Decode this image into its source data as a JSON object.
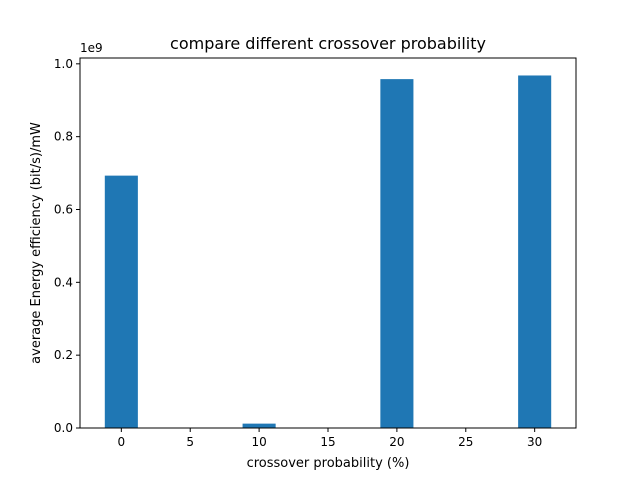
{
  "chart_data": {
    "type": "bar",
    "title": "compare different crossover probability",
    "xlabel": "crossover probability (%)",
    "ylabel": "average Energy efficiency (bit/s)/mW",
    "y_offset_label": "1e9",
    "x": [
      0,
      10,
      20,
      30
    ],
    "values": [
      693000000,
      12000000,
      958000000,
      968000000
    ],
    "bar_width": 2.4,
    "xlim": [
      -3,
      33
    ],
    "ylim": [
      0,
      1016000000
    ],
    "xticks": [
      0,
      5,
      10,
      15,
      20,
      25,
      30
    ],
    "xtick_labels": [
      "0",
      "5",
      "10",
      "15",
      "20",
      "25",
      "30"
    ],
    "yticks": [
      0,
      200000000,
      400000000,
      600000000,
      800000000,
      1000000000
    ],
    "ytick_labels": [
      "0.0",
      "0.2",
      "0.4",
      "0.6",
      "0.8",
      "1.0"
    ],
    "bar_color": "#1f77b4",
    "grid": false,
    "legend": "none"
  }
}
